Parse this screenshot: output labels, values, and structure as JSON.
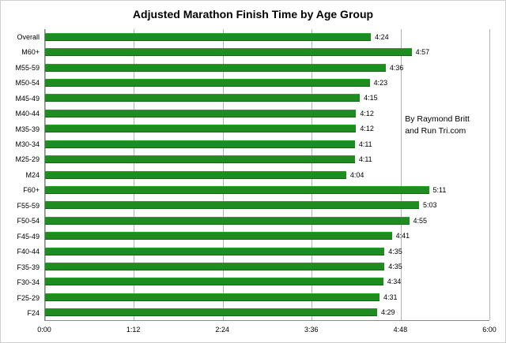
{
  "chart": {
    "title": "Adjusted Marathon Finish Time by Age Group",
    "annotation_lines": [
      "By Raymond Britt",
      "and Run Tri.com"
    ]
  },
  "chart_data": {
    "type": "bar",
    "orientation": "horizontal",
    "title": "Adjusted Marathon Finish Time by Age Group",
    "categories": [
      "Overall",
      "M60+",
      "M55-59",
      "M50-54",
      "M45-49",
      "M40-44",
      "M35-39",
      "M30-34",
      "M25-29",
      "M24",
      "F60+",
      "F55-59",
      "F50-54",
      "F45-49",
      "F40-44",
      "F35-39",
      "F30-34",
      "F25-29",
      "F24"
    ],
    "values": [
      "4:24",
      "4:57",
      "4:36",
      "4:23",
      "4:15",
      "4:12",
      "4:12",
      "4:11",
      "4:11",
      "4:04",
      "5:11",
      "5:03",
      "4:55",
      "4:41",
      "4:35",
      "4:35",
      "4:34",
      "4:31",
      "4:29"
    ],
    "x_ticks": [
      "0:00",
      "1:12",
      "2:24",
      "3:36",
      "4:48",
      "6:00"
    ],
    "xlim_hours": [
      0,
      6
    ],
    "xlabel": "",
    "ylabel": "",
    "grid": "vertical",
    "legend": "none",
    "bar_color": "#1e8c1e",
    "gridline_color": "#b5b5b5"
  }
}
